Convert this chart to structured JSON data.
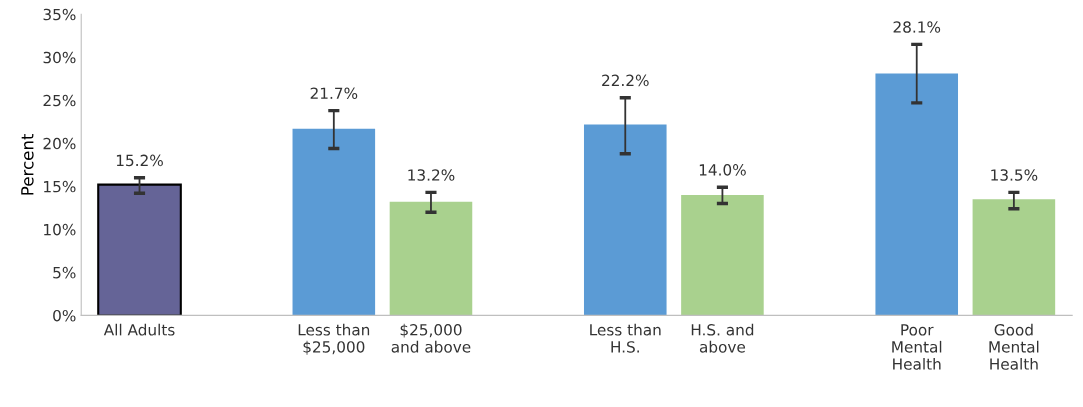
{
  "chart_data": {
    "type": "bar",
    "ylabel": "Percent",
    "categories": [
      "All Adults",
      null,
      "Less than\n$25,000",
      "$25,000\nand above",
      null,
      "Less than\nH.S.",
      "H.S. and\nabove",
      null,
      "Poor\nMental\nHealth",
      "Good\nMental\nHealth"
    ],
    "values": [
      15.2,
      null,
      21.7,
      13.2,
      null,
      22.2,
      14.0,
      null,
      28.1,
      13.5
    ],
    "colors": [
      "#656497",
      null,
      "#5b9bd5",
      "#a9d18e",
      null,
      "#5b9bd5",
      "#a9d18e",
      null,
      "#5b9bd5",
      "#a9d18e"
    ],
    "errors": [
      [
        14.2,
        16.0
      ],
      null,
      [
        19.4,
        23.8
      ],
      [
        12.0,
        14.3
      ],
      null,
      [
        18.8,
        25.3
      ],
      [
        13.0,
        14.9
      ],
      null,
      [
        24.7,
        31.5
      ],
      [
        12.4,
        14.3
      ]
    ],
    "value_labels": [
      "15.2%",
      null,
      "21.7%",
      "13.2%",
      null,
      "22.2%",
      "14.0%",
      null,
      "28.1%",
      "13.5%"
    ],
    "ylim": [
      0,
      35
    ],
    "yticks": [
      {
        "value": 0,
        "label": "0%"
      },
      {
        "value": 5,
        "label": "5%"
      },
      {
        "value": 10,
        "label": "10%"
      },
      {
        "value": 15,
        "label": "15%"
      },
      {
        "value": 20,
        "label": "20%"
      },
      {
        "value": 25,
        "label": "25%"
      },
      {
        "value": 30,
        "label": "30%"
      },
      {
        "value": 35,
        "label": "35%"
      }
    ],
    "marker": "diamond",
    "grid": false,
    "legend": false
  }
}
